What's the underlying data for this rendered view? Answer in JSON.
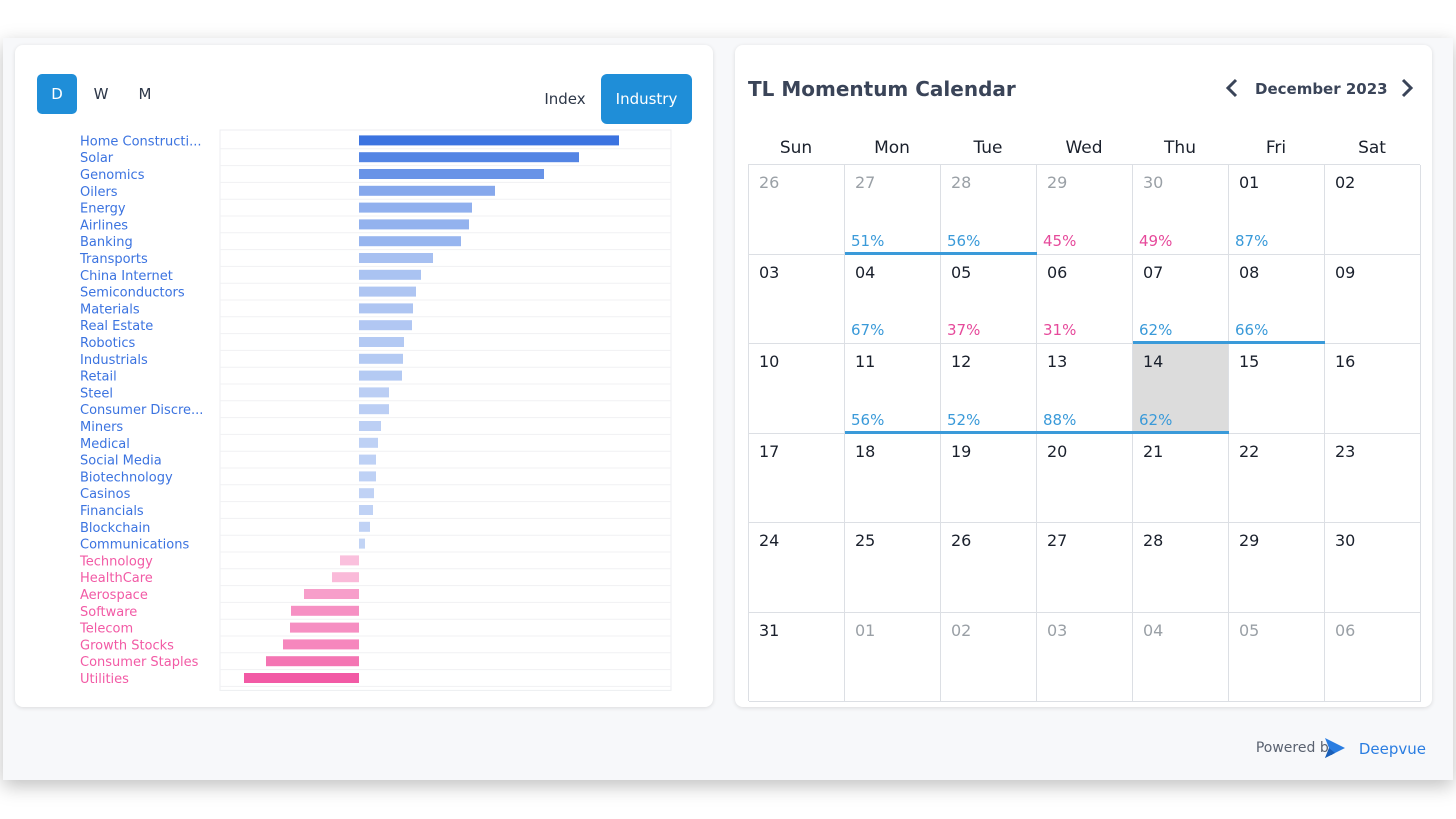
{
  "periods": [
    {
      "label": "D",
      "active": true
    },
    {
      "label": "W",
      "active": false
    },
    {
      "label": "M",
      "active": false
    }
  ],
  "modes": [
    {
      "label": "Index",
      "active": false
    },
    {
      "label": "Industry",
      "active": true
    }
  ],
  "chart_data": {
    "type": "bar",
    "orientation": "horizontal",
    "categories": [
      "Home Constructi...",
      "Solar",
      "Genomics",
      "Oilers",
      "Energy",
      "Airlines",
      "Banking",
      "Transports",
      "China Internet",
      "Semiconductors",
      "Materials",
      "Real Estate",
      "Robotics",
      "Industrials",
      "Retail",
      "Steel",
      "Consumer Discre...",
      "Miners",
      "Medical",
      "Social Media",
      "Biotechnology",
      "Casinos",
      "Financials",
      "Blockchain",
      "Communications",
      "Technology",
      "HealthCare",
      "Aerospace",
      "Software",
      "Telecom",
      "Growth Stocks",
      "Consumer Staples",
      "Utilities"
    ],
    "values": [
      2.6,
      2.2,
      1.85,
      1.36,
      1.13,
      1.1,
      1.02,
      0.74,
      0.62,
      0.57,
      0.54,
      0.53,
      0.45,
      0.44,
      0.43,
      0.3,
      0.3,
      0.22,
      0.19,
      0.17,
      0.17,
      0.15,
      0.14,
      0.11,
      0.06,
      -0.19,
      -0.27,
      -0.55,
      -0.68,
      -0.69,
      -0.76,
      -0.93,
      -1.15
    ],
    "positive_color": "#3b73e0",
    "negative_color": "#f25aa5",
    "grid": true
  },
  "calendar": {
    "title": "TL Momentum Calendar",
    "month": "December 2023",
    "weekdays": [
      "Sun",
      "Mon",
      "Tue",
      "Wed",
      "Thu",
      "Fri",
      "Sat"
    ],
    "weeks": [
      [
        {
          "day": "26",
          "muted": true,
          "pct": ""
        },
        {
          "day": "27",
          "muted": true,
          "pct": "51%",
          "dir": "up"
        },
        {
          "day": "28",
          "muted": true,
          "pct": "56%",
          "dir": "up"
        },
        {
          "day": "29",
          "muted": true,
          "pct": "45%",
          "dir": "down"
        },
        {
          "day": "30",
          "muted": true,
          "pct": "49%",
          "dir": "down"
        },
        {
          "day": "01",
          "muted": false,
          "pct": "87%",
          "dir": "up"
        },
        {
          "day": "02",
          "muted": false,
          "pct": ""
        }
      ],
      [
        {
          "day": "03",
          "muted": false,
          "pct": ""
        },
        {
          "day": "04",
          "muted": false,
          "pct": "67%",
          "dir": "up"
        },
        {
          "day": "05",
          "muted": false,
          "pct": "37%",
          "dir": "down"
        },
        {
          "day": "06",
          "muted": false,
          "pct": "31%",
          "dir": "down"
        },
        {
          "day": "07",
          "muted": false,
          "pct": "62%",
          "dir": "up"
        },
        {
          "day": "08",
          "muted": false,
          "pct": "66%",
          "dir": "up"
        },
        {
          "day": "09",
          "muted": false,
          "pct": ""
        }
      ],
      [
        {
          "day": "10",
          "muted": false,
          "pct": ""
        },
        {
          "day": "11",
          "muted": false,
          "pct": "56%",
          "dir": "up"
        },
        {
          "day": "12",
          "muted": false,
          "pct": "52%",
          "dir": "up"
        },
        {
          "day": "13",
          "muted": false,
          "pct": "88%",
          "dir": "up"
        },
        {
          "day": "14",
          "muted": false,
          "pct": "62%",
          "dir": "up",
          "today": true
        },
        {
          "day": "15",
          "muted": false,
          "pct": ""
        },
        {
          "day": "16",
          "muted": false,
          "pct": ""
        }
      ],
      [
        {
          "day": "17",
          "muted": false,
          "pct": ""
        },
        {
          "day": "18",
          "muted": false,
          "pct": ""
        },
        {
          "day": "19",
          "muted": false,
          "pct": ""
        },
        {
          "day": "20",
          "muted": false,
          "pct": ""
        },
        {
          "day": "21",
          "muted": false,
          "pct": ""
        },
        {
          "day": "22",
          "muted": false,
          "pct": ""
        },
        {
          "day": "23",
          "muted": false,
          "pct": ""
        }
      ],
      [
        {
          "day": "24",
          "muted": false,
          "pct": ""
        },
        {
          "day": "25",
          "muted": false,
          "pct": ""
        },
        {
          "day": "26",
          "muted": false,
          "pct": ""
        },
        {
          "day": "27",
          "muted": false,
          "pct": ""
        },
        {
          "day": "28",
          "muted": false,
          "pct": ""
        },
        {
          "day": "29",
          "muted": false,
          "pct": ""
        },
        {
          "day": "30",
          "muted": false,
          "pct": ""
        }
      ],
      [
        {
          "day": "31",
          "muted": false,
          "pct": ""
        },
        {
          "day": "01",
          "muted": true,
          "pct": ""
        },
        {
          "day": "02",
          "muted": true,
          "pct": ""
        },
        {
          "day": "03",
          "muted": true,
          "pct": ""
        },
        {
          "day": "04",
          "muted": true,
          "pct": ""
        },
        {
          "day": "05",
          "muted": true,
          "pct": ""
        },
        {
          "day": "06",
          "muted": true,
          "pct": ""
        }
      ]
    ],
    "streaks": [
      {
        "week": 0,
        "from": 1,
        "to": 2
      },
      {
        "week": 1,
        "from": 4,
        "to": 5
      },
      {
        "week": 2,
        "from": 1,
        "to": 4
      }
    ]
  },
  "footer": {
    "powered_by": "Powered by",
    "brand": "Deepvue"
  }
}
